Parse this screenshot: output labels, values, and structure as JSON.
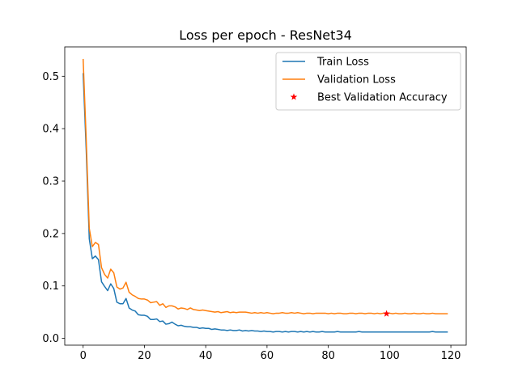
{
  "chart_data": {
    "type": "line",
    "title": "Loss per epoch - ResNet34",
    "xlabel": "",
    "ylabel": "",
    "xlim": [
      -6,
      125
    ],
    "ylim": [
      -0.013,
      0.556
    ],
    "x_ticks": [
      0,
      20,
      40,
      60,
      80,
      100,
      120
    ],
    "x_tick_labels": [
      "0",
      "20",
      "40",
      "60",
      "80",
      "100",
      "120"
    ],
    "y_ticks": [
      0.0,
      0.1,
      0.2,
      0.3,
      0.4,
      0.5
    ],
    "y_tick_labels": [
      "0.0",
      "0.1",
      "0.2",
      "0.3",
      "0.4",
      "0.5"
    ],
    "grid": false,
    "legend_position": "top-right",
    "series": [
      {
        "name": "Train Loss",
        "color": "#1f77b4",
        "values": [
          0.506,
          0.36,
          0.19,
          0.152,
          0.157,
          0.15,
          0.108,
          0.099,
          0.091,
          0.104,
          0.095,
          0.069,
          0.066,
          0.066,
          0.076,
          0.058,
          0.054,
          0.052,
          0.045,
          0.044,
          0.044,
          0.042,
          0.036,
          0.036,
          0.037,
          0.032,
          0.033,
          0.027,
          0.028,
          0.031,
          0.027,
          0.024,
          0.025,
          0.023,
          0.022,
          0.022,
          0.021,
          0.021,
          0.019,
          0.02,
          0.019,
          0.019,
          0.017,
          0.018,
          0.017,
          0.016,
          0.016,
          0.015,
          0.016,
          0.015,
          0.015,
          0.016,
          0.014,
          0.015,
          0.014,
          0.015,
          0.014,
          0.014,
          0.013,
          0.014,
          0.013,
          0.013,
          0.012,
          0.013,
          0.013,
          0.012,
          0.013,
          0.012,
          0.013,
          0.013,
          0.012,
          0.013,
          0.012,
          0.013,
          0.012,
          0.013,
          0.012,
          0.012,
          0.013,
          0.012,
          0.012,
          0.012,
          0.012,
          0.013,
          0.012,
          0.012,
          0.012,
          0.012,
          0.012,
          0.012,
          0.013,
          0.012,
          0.012,
          0.012,
          0.012,
          0.012,
          0.012,
          0.012,
          0.012,
          0.012,
          0.012,
          0.012,
          0.012,
          0.012,
          0.012,
          0.012,
          0.012,
          0.012,
          0.012,
          0.012,
          0.012,
          0.012,
          0.012,
          0.012,
          0.013,
          0.012,
          0.012,
          0.012,
          0.012,
          0.012
        ]
      },
      {
        "name": "Validation Loss",
        "color": "#ff7f0e",
        "values": [
          0.533,
          0.38,
          0.21,
          0.175,
          0.183,
          0.179,
          0.135,
          0.122,
          0.115,
          0.132,
          0.125,
          0.098,
          0.094,
          0.096,
          0.107,
          0.088,
          0.083,
          0.08,
          0.076,
          0.075,
          0.075,
          0.073,
          0.068,
          0.069,
          0.07,
          0.063,
          0.066,
          0.059,
          0.062,
          0.062,
          0.06,
          0.056,
          0.058,
          0.057,
          0.055,
          0.058,
          0.055,
          0.054,
          0.053,
          0.054,
          0.053,
          0.052,
          0.051,
          0.05,
          0.051,
          0.049,
          0.05,
          0.051,
          0.049,
          0.05,
          0.049,
          0.05,
          0.05,
          0.05,
          0.049,
          0.048,
          0.049,
          0.048,
          0.049,
          0.048,
          0.049,
          0.048,
          0.047,
          0.048,
          0.048,
          0.049,
          0.048,
          0.048,
          0.049,
          0.048,
          0.049,
          0.048,
          0.047,
          0.048,
          0.048,
          0.047,
          0.048,
          0.048,
          0.048,
          0.048,
          0.047,
          0.048,
          0.047,
          0.048,
          0.048,
          0.047,
          0.047,
          0.048,
          0.048,
          0.047,
          0.048,
          0.048,
          0.047,
          0.048,
          0.048,
          0.047,
          0.048,
          0.047,
          0.048,
          0.048,
          0.048,
          0.047,
          0.048,
          0.047,
          0.047,
          0.048,
          0.047,
          0.047,
          0.048,
          0.047,
          0.047,
          0.048,
          0.047,
          0.047,
          0.048,
          0.047,
          0.047,
          0.047,
          0.047,
          0.047
        ]
      },
      {
        "name": "Best Validation Accuracy",
        "color": "#ff0000",
        "marker": "star",
        "points": [
          {
            "x": 99,
            "y": 0.047
          }
        ]
      }
    ]
  }
}
